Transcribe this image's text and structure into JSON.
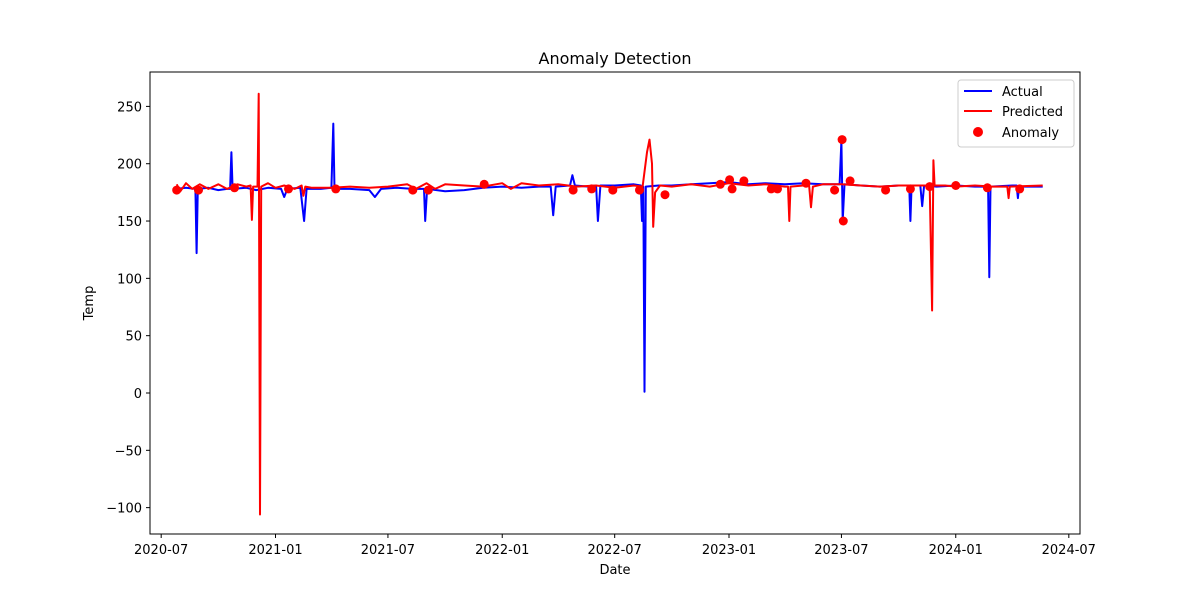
{
  "chart_data": {
    "type": "line",
    "title": "Anomaly Detection",
    "xlabel": "Date",
    "ylabel": "Temp",
    "xlim": [
      "2020-06-13",
      "2024-07-19"
    ],
    "ylim": [
      -123,
      280
    ],
    "x_ticks": [
      "2020-07",
      "2021-01",
      "2021-07",
      "2022-01",
      "2022-07",
      "2023-01",
      "2023-07",
      "2024-01",
      "2024-07"
    ],
    "y_ticks": [
      -100,
      -50,
      0,
      50,
      100,
      150,
      200,
      250
    ],
    "grid": false,
    "legend_position": "top-right",
    "colors": {
      "actual": "#0000ff",
      "predicted": "#ff0000",
      "anomaly": "#ff0000"
    },
    "series": [
      {
        "name": "Actual",
        "type": "line",
        "color": "#0000ff",
        "points": [
          [
            "2020-07-26",
            178
          ],
          [
            "2020-08-10",
            179
          ],
          [
            "2020-08-25",
            178
          ],
          [
            "2020-08-27",
            122
          ],
          [
            "2020-08-29",
            178
          ],
          [
            "2020-09-15",
            179
          ],
          [
            "2020-10-01",
            177
          ],
          [
            "2020-10-15",
            178
          ],
          [
            "2020-10-20",
            178
          ],
          [
            "2020-10-22",
            210
          ],
          [
            "2020-10-24",
            178
          ],
          [
            "2020-11-15",
            179
          ],
          [
            "2020-12-01",
            177
          ],
          [
            "2020-12-20",
            179
          ],
          [
            "2021-01-10",
            178
          ],
          [
            "2021-01-15",
            171
          ],
          [
            "2021-01-20",
            178
          ],
          [
            "2021-02-10",
            179
          ],
          [
            "2021-02-16",
            150
          ],
          [
            "2021-02-20",
            178
          ],
          [
            "2021-03-15",
            178
          ],
          [
            "2021-04-01",
            179
          ],
          [
            "2021-04-04",
            235
          ],
          [
            "2021-04-06",
            178
          ],
          [
            "2021-05-01",
            178
          ],
          [
            "2021-06-01",
            177
          ],
          [
            "2021-06-10",
            171
          ],
          [
            "2021-06-20",
            178
          ],
          [
            "2021-07-15",
            179
          ],
          [
            "2021-08-10",
            178
          ],
          [
            "2021-08-28",
            178
          ],
          [
            "2021-08-30",
            150
          ],
          [
            "2021-09-02",
            178
          ],
          [
            "2021-10-01",
            176
          ],
          [
            "2021-11-01",
            177
          ],
          [
            "2021-12-01",
            179
          ],
          [
            "2022-01-01",
            180
          ],
          [
            "2022-02-01",
            179
          ],
          [
            "2022-03-01",
            180
          ],
          [
            "2022-03-20",
            180
          ],
          [
            "2022-03-24",
            155
          ],
          [
            "2022-03-28",
            180
          ],
          [
            "2022-04-20",
            181
          ],
          [
            "2022-04-24",
            190
          ],
          [
            "2022-04-28",
            181
          ],
          [
            "2022-05-20",
            180
          ],
          [
            "2022-06-01",
            181
          ],
          [
            "2022-06-04",
            150
          ],
          [
            "2022-06-08",
            181
          ],
          [
            "2022-07-01",
            181
          ],
          [
            "2022-08-01",
            182
          ],
          [
            "2022-08-12",
            181
          ],
          [
            "2022-08-14",
            150
          ],
          [
            "2022-08-16",
            180
          ],
          [
            "2022-08-18",
            1
          ],
          [
            "2022-08-20",
            180
          ],
          [
            "2022-09-10",
            181
          ],
          [
            "2022-10-01",
            181
          ],
          [
            "2022-11-01",
            182
          ],
          [
            "2022-12-01",
            183
          ],
          [
            "2023-01-01",
            184
          ],
          [
            "2023-02-01",
            182
          ],
          [
            "2023-03-01",
            183
          ],
          [
            "2023-04-01",
            182
          ],
          [
            "2023-05-01",
            183
          ],
          [
            "2023-06-01",
            182
          ],
          [
            "2023-06-28",
            182
          ],
          [
            "2023-07-01",
            220
          ],
          [
            "2023-07-03",
            150
          ],
          [
            "2023-07-06",
            182
          ],
          [
            "2023-08-01",
            181
          ],
          [
            "2023-09-01",
            180
          ],
          [
            "2023-10-01",
            181
          ],
          [
            "2023-10-18",
            181
          ],
          [
            "2023-10-20",
            150
          ],
          [
            "2023-10-22",
            181
          ],
          [
            "2023-11-05",
            181
          ],
          [
            "2023-11-08",
            163
          ],
          [
            "2023-11-11",
            181
          ],
          [
            "2023-12-01",
            180
          ],
          [
            "2024-01-01",
            181
          ],
          [
            "2024-02-01",
            180
          ],
          [
            "2024-02-22",
            180
          ],
          [
            "2024-02-24",
            101
          ],
          [
            "2024-02-26",
            180
          ],
          [
            "2024-04-01",
            181
          ],
          [
            "2024-04-08",
            181
          ],
          [
            "2024-04-10",
            170
          ],
          [
            "2024-04-12",
            180
          ],
          [
            "2024-05-20",
            180
          ]
        ]
      },
      {
        "name": "Predicted",
        "type": "line",
        "color": "#ff0000",
        "points": [
          [
            "2020-07-26",
            182
          ],
          [
            "2020-08-01",
            176
          ],
          [
            "2020-08-10",
            183
          ],
          [
            "2020-08-20",
            178
          ],
          [
            "2020-09-01",
            182
          ],
          [
            "2020-09-15",
            178
          ],
          [
            "2020-10-01",
            182
          ],
          [
            "2020-10-15",
            178
          ],
          [
            "2020-11-01",
            182
          ],
          [
            "2020-11-15",
            180
          ],
          [
            "2020-11-22",
            181
          ],
          [
            "2020-11-24",
            151
          ],
          [
            "2020-11-26",
            180
          ],
          [
            "2020-12-03",
            180
          ],
          [
            "2020-12-05",
            261
          ],
          [
            "2020-12-07",
            -106
          ],
          [
            "2020-12-09",
            180
          ],
          [
            "2020-12-20",
            183
          ],
          [
            "2021-01-01",
            179
          ],
          [
            "2021-01-15",
            181
          ],
          [
            "2021-02-01",
            178
          ],
          [
            "2021-02-12",
            181
          ],
          [
            "2021-02-15",
            172
          ],
          [
            "2021-02-18",
            180
          ],
          [
            "2021-03-01",
            179
          ],
          [
            "2021-04-01",
            179
          ],
          [
            "2021-05-01",
            180
          ],
          [
            "2021-06-01",
            179
          ],
          [
            "2021-07-01",
            180
          ],
          [
            "2021-08-01",
            182
          ],
          [
            "2021-08-15",
            178
          ],
          [
            "2021-09-01",
            183
          ],
          [
            "2021-09-15",
            178
          ],
          [
            "2021-10-01",
            182
          ],
          [
            "2021-11-01",
            181
          ],
          [
            "2021-12-01",
            180
          ],
          [
            "2022-01-01",
            183
          ],
          [
            "2022-01-15",
            178
          ],
          [
            "2022-02-01",
            183
          ],
          [
            "2022-03-01",
            181
          ],
          [
            "2022-04-01",
            182
          ],
          [
            "2022-05-01",
            180
          ],
          [
            "2022-06-01",
            181
          ],
          [
            "2022-07-01",
            179
          ],
          [
            "2022-08-01",
            181
          ],
          [
            "2022-08-15",
            180
          ],
          [
            "2022-08-22",
            210
          ],
          [
            "2022-08-26",
            221
          ],
          [
            "2022-08-30",
            200
          ],
          [
            "2022-09-01",
            145
          ],
          [
            "2022-09-04",
            175
          ],
          [
            "2022-09-12",
            181
          ],
          [
            "2022-10-01",
            180
          ],
          [
            "2022-11-01",
            182
          ],
          [
            "2022-12-01",
            180
          ],
          [
            "2023-01-01",
            183
          ],
          [
            "2023-02-01",
            181
          ],
          [
            "2023-03-01",
            182
          ],
          [
            "2023-04-01",
            180
          ],
          [
            "2023-04-06",
            180
          ],
          [
            "2023-04-08",
            150
          ],
          [
            "2023-04-10",
            180
          ],
          [
            "2023-05-01",
            181
          ],
          [
            "2023-05-10",
            181
          ],
          [
            "2023-05-13",
            162
          ],
          [
            "2023-05-16",
            180
          ],
          [
            "2023-06-01",
            182
          ],
          [
            "2023-07-01",
            182
          ],
          [
            "2023-08-01",
            181
          ],
          [
            "2023-09-01",
            180
          ],
          [
            "2023-10-01",
            181
          ],
          [
            "2023-11-01",
            181
          ],
          [
            "2023-11-20",
            181
          ],
          [
            "2023-11-24",
            72
          ],
          [
            "2023-11-26",
            203
          ],
          [
            "2023-11-28",
            181
          ],
          [
            "2023-12-15",
            181
          ],
          [
            "2024-01-01",
            180
          ],
          [
            "2024-02-01",
            181
          ],
          [
            "2024-03-01",
            180
          ],
          [
            "2024-03-24",
            180
          ],
          [
            "2024-03-26",
            170
          ],
          [
            "2024-03-28",
            180
          ],
          [
            "2024-05-20",
            181
          ]
        ]
      },
      {
        "name": "Anomaly",
        "type": "scatter",
        "color": "#ff0000",
        "points": [
          [
            "2020-07-26",
            177
          ],
          [
            "2020-08-30",
            177
          ],
          [
            "2020-10-27",
            179
          ],
          [
            "2021-01-22",
            178
          ],
          [
            "2021-04-08",
            178
          ],
          [
            "2021-08-10",
            177
          ],
          [
            "2021-09-04",
            177
          ],
          [
            "2021-12-03",
            182
          ],
          [
            "2022-04-25",
            177
          ],
          [
            "2022-05-25",
            178
          ],
          [
            "2022-06-28",
            177
          ],
          [
            "2022-08-10",
            177
          ],
          [
            "2022-09-20",
            173
          ],
          [
            "2022-12-18",
            182
          ],
          [
            "2023-01-02",
            186
          ],
          [
            "2023-01-06",
            178
          ],
          [
            "2023-01-25",
            185
          ],
          [
            "2023-03-10",
            178
          ],
          [
            "2023-03-20",
            178
          ],
          [
            "2023-05-05",
            183
          ],
          [
            "2023-06-20",
            177
          ],
          [
            "2023-07-02",
            221
          ],
          [
            "2023-07-04",
            150
          ],
          [
            "2023-07-15",
            185
          ],
          [
            "2023-09-10",
            177
          ],
          [
            "2023-10-20",
            178
          ],
          [
            "2023-11-20",
            180
          ],
          [
            "2024-01-01",
            181
          ],
          [
            "2024-02-21",
            179
          ],
          [
            "2024-04-13",
            178
          ]
        ]
      }
    ]
  }
}
